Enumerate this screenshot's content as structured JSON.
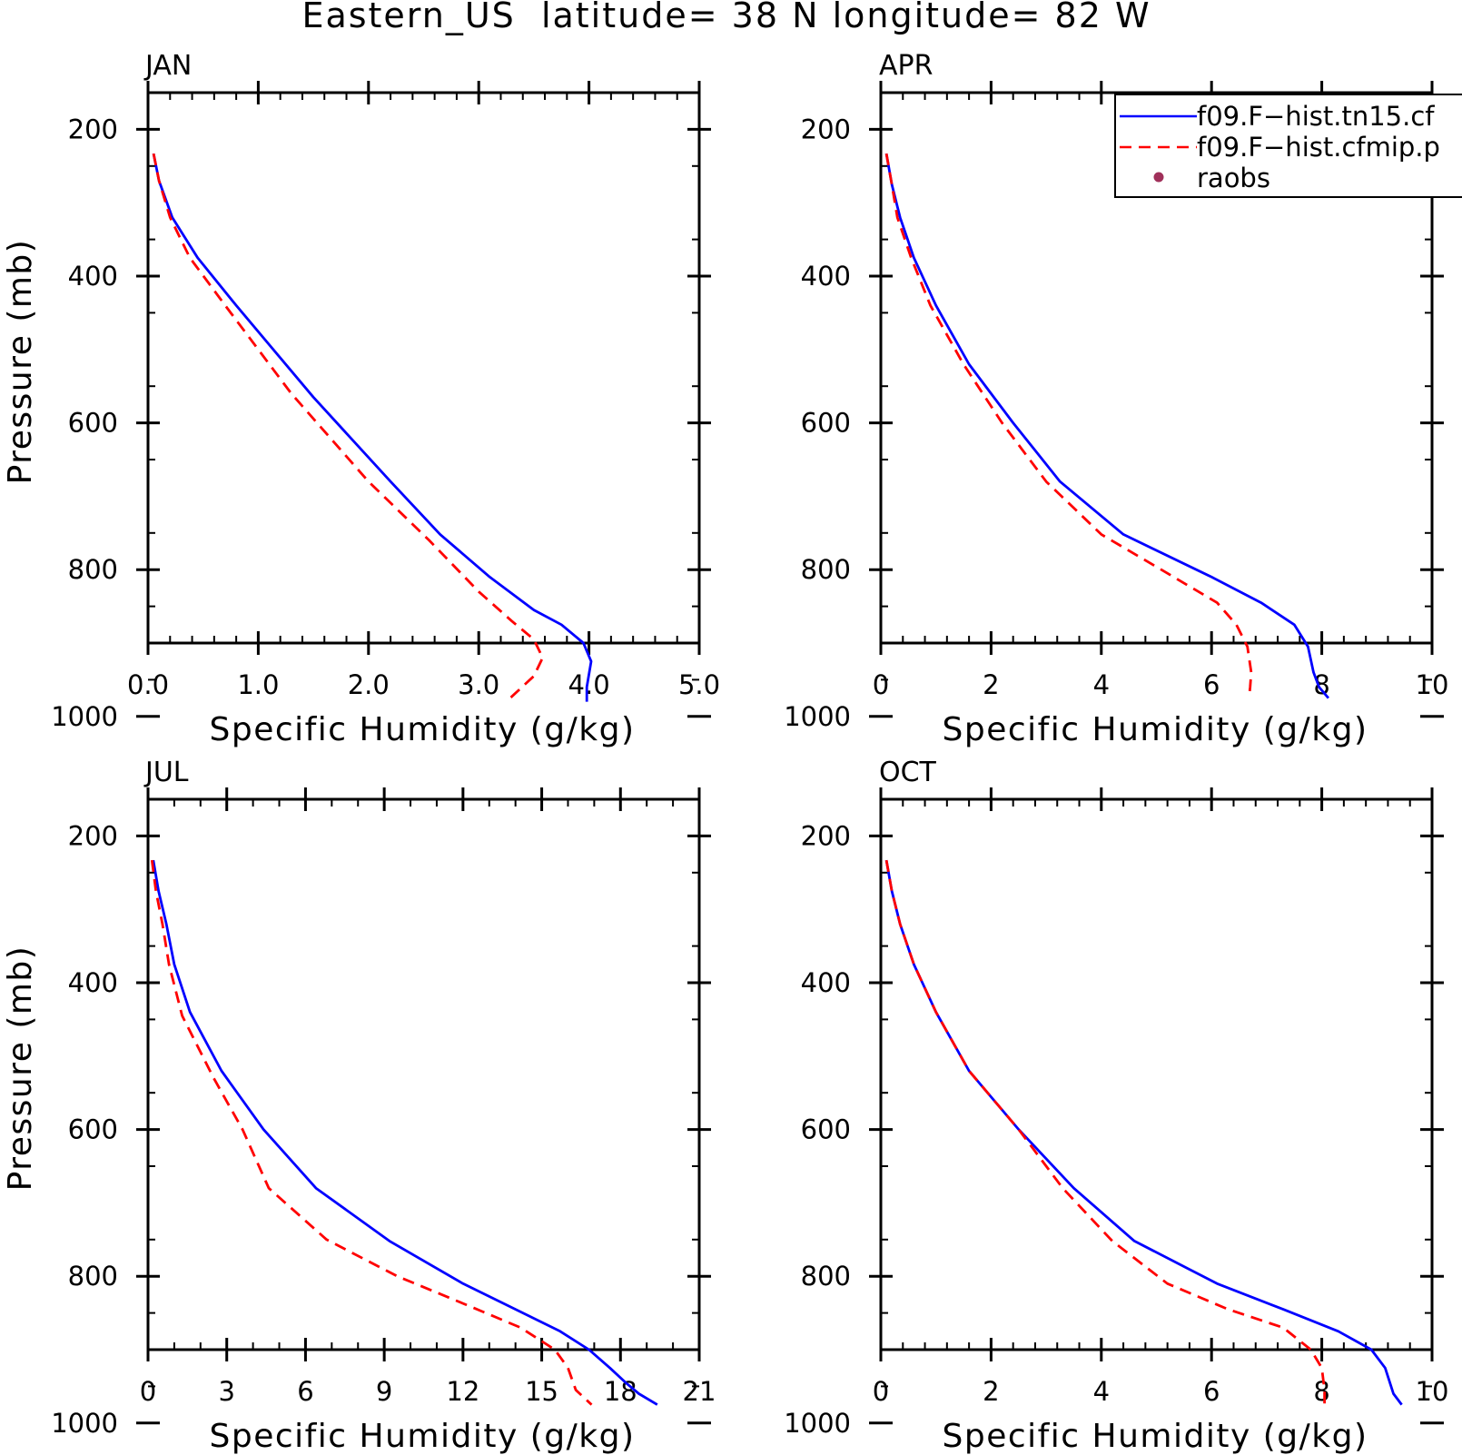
{
  "title": "Eastern_US  latitude= 38 N longitude= 82 W",
  "legend": [
    {
      "label": "f09.F−hist.tn15.cf",
      "color": "#0000ff",
      "style": "solid"
    },
    {
      "label": "f09.F−hist.cfmip.p",
      "color": "#ff0000",
      "style": "dashed"
    },
    {
      "label": "raobs",
      "color": "#a0305a",
      "style": "marker"
    }
  ],
  "chart_data": [
    {
      "type": "line",
      "title": "JAN",
      "xlabel": "Specific Humidity (g/kg)",
      "ylabel": "Pressure (mb)",
      "xlim": [
        0,
        5
      ],
      "ylim": [
        1000,
        200
      ],
      "xticks": [
        "0.0",
        "1.0",
        "2.0",
        "3.0",
        "4.0",
        "5.0"
      ],
      "xtick_values": [
        0,
        1,
        2,
        3,
        4,
        5
      ],
      "yticks": [
        "200",
        "400",
        "600",
        "800",
        "1000"
      ],
      "ytick_values": [
        200,
        400,
        600,
        800,
        1000
      ],
      "series": [
        {
          "name": "f09.F−hist.tn15.cf",
          "x": [
            0.05,
            0.1,
            0.22,
            0.45,
            0.8,
            1.5,
            2.2,
            2.65,
            3.1,
            3.5,
            3.75,
            3.95,
            4.02,
            3.98,
            3.98
          ],
          "y": [
            233,
            270,
            320,
            375,
            440,
            565,
            680,
            752,
            810,
            855,
            875,
            900,
            925,
            960,
            980
          ]
        },
        {
          "name": "f09.F−hist.cfmip.p",
          "x": [
            0.05,
            0.1,
            0.2,
            0.38,
            0.7,
            1.3,
            2.0,
            2.55,
            3.0,
            3.3,
            3.5,
            3.58,
            3.5,
            3.25
          ],
          "y": [
            233,
            270,
            320,
            375,
            440,
            560,
            680,
            760,
            830,
            870,
            895,
            920,
            945,
            980
          ]
        }
      ]
    },
    {
      "type": "line",
      "title": "APR",
      "xlabel": "Specific Humidity (g/kg)",
      "ylabel": "",
      "xlim": [
        0,
        10
      ],
      "ylim": [
        1000,
        200
      ],
      "xticks": [
        "0",
        "2",
        "4",
        "6",
        "8",
        "10"
      ],
      "xtick_values": [
        0,
        2,
        4,
        6,
        8,
        10
      ],
      "yticks": [
        "200",
        "400",
        "600",
        "800",
        "1000"
      ],
      "ytick_values": [
        200,
        400,
        600,
        800,
        1000
      ],
      "series": [
        {
          "name": "f09.F−hist.tn15.cf",
          "x": [
            0.1,
            0.2,
            0.35,
            0.6,
            1.0,
            1.6,
            2.4,
            3.25,
            4.4,
            6.0,
            6.9,
            7.5,
            7.75,
            7.85,
            7.95,
            8.12
          ],
          "y": [
            233,
            275,
            320,
            375,
            440,
            520,
            600,
            680,
            752,
            810,
            845,
            875,
            905,
            940,
            960,
            975
          ]
        },
        {
          "name": "f09.F−hist.cfmip.p",
          "x": [
            0.1,
            0.2,
            0.3,
            0.55,
            0.9,
            1.5,
            2.2,
            3.0,
            4.0,
            5.2,
            6.1,
            6.45,
            6.65,
            6.72,
            6.7,
            6.68
          ],
          "y": [
            233,
            275,
            320,
            375,
            440,
            520,
            600,
            680,
            752,
            805,
            845,
            875,
            905,
            940,
            960,
            975
          ]
        }
      ]
    },
    {
      "type": "line",
      "title": "JUL",
      "xlabel": "Specific Humidity (g/kg)",
      "ylabel": "Pressure (mb)",
      "xlim": [
        0,
        21
      ],
      "ylim": [
        1000,
        200
      ],
      "xticks": [
        "0",
        "3",
        "6",
        "9",
        "12",
        "15",
        "18",
        "21"
      ],
      "xtick_values": [
        0,
        3,
        6,
        9,
        12,
        15,
        18,
        21
      ],
      "yticks": [
        "200",
        "400",
        "600",
        "800",
        "1000"
      ],
      "ytick_values": [
        200,
        400,
        600,
        800,
        1000
      ],
      "series": [
        {
          "name": "f09.F−hist.tn15.cf",
          "x": [
            0.2,
            0.4,
            0.7,
            1.0,
            1.6,
            2.8,
            4.4,
            6.4,
            9.2,
            12.0,
            14.0,
            15.7,
            16.8,
            17.6,
            18.2,
            18.7,
            19.4
          ],
          "y": [
            233,
            275,
            320,
            375,
            440,
            520,
            600,
            680,
            752,
            810,
            845,
            875,
            900,
            925,
            945,
            960,
            975
          ]
        },
        {
          "name": "f09.F−hist.cfmip.p",
          "x": [
            0.15,
            0.3,
            0.55,
            0.8,
            1.3,
            2.5,
            3.6,
            4.6,
            6.8,
            9.5,
            12.2,
            14.2,
            15.5,
            16.0,
            16.3,
            16.9
          ],
          "y": [
            233,
            275,
            320,
            375,
            445,
            530,
            600,
            680,
            750,
            800,
            840,
            870,
            900,
            925,
            955,
            975
          ]
        }
      ]
    },
    {
      "type": "line",
      "title": "OCT",
      "xlabel": "Specific Humidity (g/kg)",
      "ylabel": "",
      "xlim": [
        0,
        10
      ],
      "ylim": [
        1000,
        200
      ],
      "xticks": [
        "0",
        "2",
        "4",
        "6",
        "8",
        "10"
      ],
      "xtick_values": [
        0,
        2,
        4,
        6,
        8,
        10
      ],
      "yticks": [
        "200",
        "400",
        "600",
        "800",
        "1000"
      ],
      "ytick_values": [
        200,
        400,
        600,
        800,
        1000
      ],
      "series": [
        {
          "name": "f09.F−hist.tn15.cf",
          "x": [
            0.1,
            0.2,
            0.35,
            0.6,
            1.0,
            1.6,
            2.5,
            3.5,
            4.6,
            6.1,
            7.3,
            8.3,
            8.9,
            9.15,
            9.3,
            9.45
          ],
          "y": [
            233,
            275,
            320,
            375,
            440,
            520,
            600,
            680,
            752,
            810,
            845,
            875,
            900,
            925,
            960,
            975
          ]
        },
        {
          "name": "f09.F−hist.cfmip.p",
          "x": [
            0.1,
            0.2,
            0.35,
            0.6,
            1.0,
            1.6,
            2.5,
            3.3,
            4.2,
            5.2,
            6.3,
            7.3,
            7.8,
            8.0,
            8.05,
            8.05
          ],
          "y": [
            233,
            275,
            320,
            375,
            440,
            520,
            600,
            680,
            752,
            810,
            845,
            870,
            900,
            925,
            955,
            975
          ]
        }
      ]
    }
  ]
}
